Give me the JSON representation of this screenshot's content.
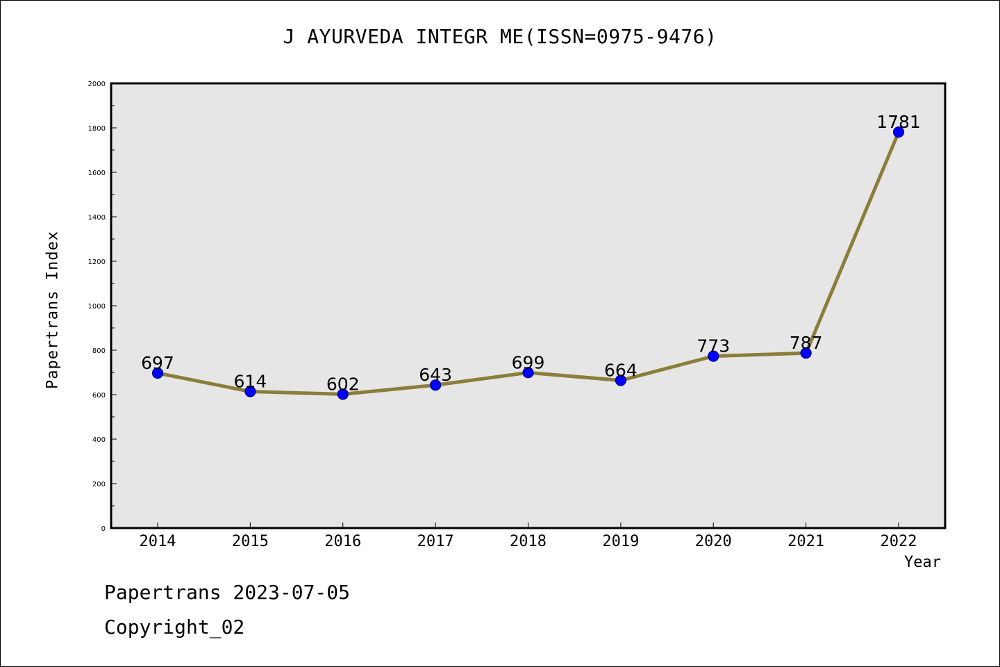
{
  "chart_data": {
    "type": "line",
    "title": "J AYURVEDA INTEGR ME(ISSN=0975-9476)",
    "xlabel": "Year",
    "ylabel": "Papertrans Index",
    "categories": [
      "2014",
      "2015",
      "2016",
      "2017",
      "2018",
      "2019",
      "2020",
      "2021",
      "2022"
    ],
    "series": [
      {
        "values": [
          697,
          614,
          602,
          643,
          699,
          664,
          773,
          787,
          1781
        ]
      }
    ],
    "data_labels": [
      "697",
      "614",
      "602",
      "643",
      "699",
      "664",
      "773",
      "787",
      "1781"
    ],
    "ylim": [
      0,
      2000
    ],
    "y_ticks": [
      0,
      200,
      400,
      600,
      800,
      1000,
      1200,
      1400,
      1600,
      1800,
      2000
    ],
    "y_tick_labels": [
      "0",
      "200",
      "400",
      "600",
      "800",
      "1000",
      "1200",
      "1400",
      "1600",
      "1800",
      "2000"
    ],
    "grid": false,
    "colors": {
      "line": "#8b7d3a",
      "marker_fill": "#0000ff",
      "marker_edge": "#000080",
      "plot_background": "#e6e6e6"
    }
  },
  "footer": {
    "line1": "Papertrans 2023-07-05",
    "line2": "Copyright_02"
  }
}
